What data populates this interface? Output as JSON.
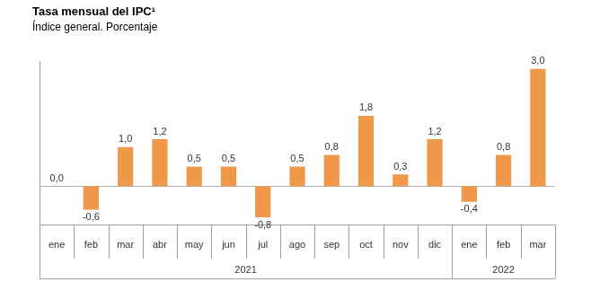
{
  "chart_data": {
    "type": "bar",
    "title": "Tasa mensual del IPC¹",
    "subtitle": "Índice general. Porcentaje",
    "categories": [
      "ene",
      "feb",
      "mar",
      "abr",
      "may",
      "jun",
      "jul",
      "ago",
      "sep",
      "oct",
      "nov",
      "dic",
      "ene",
      "feb",
      "mar"
    ],
    "groups": [
      {
        "label": "2021",
        "size": 12
      },
      {
        "label": "2022",
        "size": 3
      }
    ],
    "values": [
      0.0,
      -0.6,
      1.0,
      1.2,
      0.5,
      0.5,
      -0.8,
      0.5,
      0.8,
      1.8,
      0.3,
      1.2,
      -0.4,
      0.8,
      3.0
    ],
    "value_labels": [
      "0,0",
      "-0,6",
      "1,0",
      "1,2",
      "0,5",
      "0,5",
      "-0,8",
      "0,5",
      "0,8",
      "1,8",
      "0,3",
      "1,2",
      "-0,4",
      "0,8",
      "3,0"
    ],
    "color": "#f0984a",
    "ylim": [
      -1.0,
      3.2
    ],
    "yticks": [],
    "grid": false,
    "data_labels": true,
    "tick_labels": "x"
  }
}
